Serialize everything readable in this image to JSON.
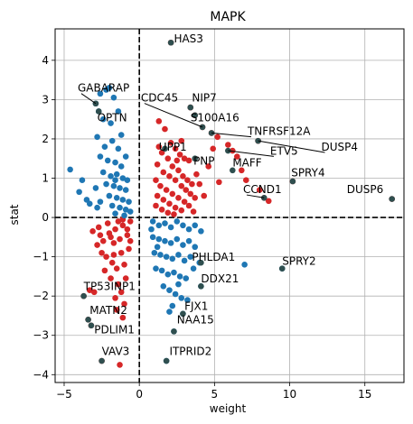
{
  "chart_data": {
    "type": "scatter",
    "title": "MAPK",
    "xlabel": "weight",
    "ylabel": "stat",
    "xlim": [
      -5.6,
      17.6
    ],
    "ylim": [
      -4.2,
      4.8
    ],
    "xticks": [
      -5,
      0,
      5,
      10,
      15
    ],
    "yticks": [
      -4,
      -3,
      -2,
      -1,
      0,
      1,
      2,
      3,
      4
    ],
    "grid": true,
    "reference_lines": {
      "x": 0,
      "y": 0,
      "style": "dashed"
    },
    "colors": {
      "positive": "#d62728",
      "negative": "#1f77b4",
      "annotated_point": "#2f4f4f"
    },
    "series": [
      {
        "color": "#d62728",
        "points": [
          [
            2.1,
            4.45
          ],
          [
            3.4,
            2.8
          ],
          [
            3.7,
            2.6
          ],
          [
            4.2,
            2.3
          ],
          [
            4.8,
            2.15
          ],
          [
            5.2,
            2.05
          ],
          [
            5.9,
            1.85
          ],
          [
            6.2,
            1.7
          ],
          [
            6.5,
            1.55
          ],
          [
            6.8,
            1.2
          ],
          [
            7.1,
            0.95
          ],
          [
            7.9,
            1.95
          ],
          [
            8.0,
            0.7
          ],
          [
            8.3,
            0.5
          ],
          [
            8.6,
            0.42
          ],
          [
            10.2,
            0.92
          ],
          [
            16.8,
            0.47
          ],
          [
            4.9,
            1.75
          ],
          [
            4.6,
            1.3
          ],
          [
            5.3,
            0.9
          ],
          [
            4.3,
            0.55
          ],
          [
            1.3,
            2.45
          ],
          [
            1.7,
            2.25
          ],
          [
            2.1,
            1.9
          ],
          [
            2.4,
            1.75
          ],
          [
            2.7,
            1.6
          ],
          [
            3.0,
            1.5
          ],
          [
            3.3,
            1.45
          ],
          [
            1.5,
            1.65
          ],
          [
            1.9,
            1.5
          ],
          [
            2.2,
            1.3
          ],
          [
            2.6,
            1.2
          ],
          [
            2.9,
            1.05
          ],
          [
            3.2,
            0.95
          ],
          [
            3.5,
            0.85
          ],
          [
            1.2,
            1.35
          ],
          [
            1.6,
            1.15
          ],
          [
            2.0,
            1.05
          ],
          [
            2.4,
            0.95
          ],
          [
            2.8,
            0.8
          ],
          [
            3.1,
            0.7
          ],
          [
            3.4,
            0.6
          ],
          [
            3.7,
            0.5
          ],
          [
            1.1,
            0.95
          ],
          [
            1.4,
            0.8
          ],
          [
            1.8,
            0.7
          ],
          [
            2.2,
            0.6
          ],
          [
            2.6,
            0.5
          ],
          [
            3.0,
            0.4
          ],
          [
            3.3,
            0.3
          ],
          [
            1.2,
            0.55
          ],
          [
            1.6,
            0.45
          ],
          [
            2.0,
            0.35
          ],
          [
            2.4,
            0.25
          ],
          [
            2.8,
            0.18
          ],
          [
            1.1,
            0.3
          ],
          [
            1.5,
            0.2
          ],
          [
            1.9,
            0.12
          ],
          [
            2.3,
            0.08
          ],
          [
            3.6,
            0.15
          ],
          [
            2.5,
            1.45
          ],
          [
            3.8,
            1.1
          ],
          [
            4.0,
            0.85
          ],
          [
            1.3,
            1.8
          ],
          [
            2.8,
            1.95
          ],
          [
            -0.6,
            -0.1
          ],
          [
            -1.1,
            -0.2
          ],
          [
            -1.6,
            -0.3
          ],
          [
            -2.1,
            -0.15
          ],
          [
            -2.7,
            -0.25
          ],
          [
            -0.8,
            -0.45
          ],
          [
            -1.3,
            -0.55
          ],
          [
            -1.9,
            -0.5
          ],
          [
            -2.4,
            -0.6
          ],
          [
            -3.1,
            -0.35
          ],
          [
            -0.7,
            -0.8
          ],
          [
            -1.2,
            -0.9
          ],
          [
            -1.7,
            -0.95
          ],
          [
            -2.2,
            -1.0
          ],
          [
            -2.8,
            -0.7
          ],
          [
            -1.0,
            -1.2
          ],
          [
            -1.5,
            -1.3
          ],
          [
            -0.9,
            -1.55
          ],
          [
            -1.4,
            -1.7
          ],
          [
            -1.2,
            -1.9
          ],
          [
            -1.6,
            -2.05
          ],
          [
            -1.0,
            -2.2
          ],
          [
            -1.5,
            -2.35
          ],
          [
            -1.1,
            -2.55
          ],
          [
            -0.8,
            -0.3
          ],
          [
            -1.4,
            -0.1
          ],
          [
            -2.0,
            -0.4
          ],
          [
            -2.5,
            -0.9
          ],
          [
            -1.8,
            -1.15
          ],
          [
            -3.3,
            -1.85
          ],
          [
            -3.0,
            -1.9
          ],
          [
            -3.7,
            -2.0
          ],
          [
            -3.4,
            -2.6
          ],
          [
            -3.2,
            -2.75
          ],
          [
            -2.5,
            -3.65
          ],
          [
            -1.3,
            -3.75
          ],
          [
            -1.1,
            -0.05
          ],
          [
            -1.7,
            -0.65
          ],
          [
            -2.3,
            -1.35
          ],
          [
            -1.9,
            -1.55
          ],
          [
            -2.6,
            -0.45
          ],
          [
            -0.6,
            -0.6
          ]
        ]
      },
      {
        "color": "#1f77b4",
        "points": [
          [
            -4.6,
            1.22
          ],
          [
            -2.9,
            2.9
          ],
          [
            -2.6,
            3.15
          ],
          [
            -2.2,
            3.25
          ],
          [
            -2.0,
            3.3
          ],
          [
            -1.7,
            3.05
          ],
          [
            -2.7,
            2.7
          ],
          [
            -2.4,
            2.5
          ],
          [
            -1.9,
            2.4
          ],
          [
            -2.8,
            2.05
          ],
          [
            -2.3,
            1.8
          ],
          [
            -1.8,
            1.95
          ],
          [
            -1.4,
            1.75
          ],
          [
            -2.6,
            1.55
          ],
          [
            -2.1,
            1.45
          ],
          [
            -1.6,
            1.4
          ],
          [
            -1.2,
            1.3
          ],
          [
            -2.4,
            1.15
          ],
          [
            -1.9,
            1.05
          ],
          [
            -1.5,
            1.1
          ],
          [
            -1.1,
            1.0
          ],
          [
            -2.2,
            0.85
          ],
          [
            -1.7,
            0.8
          ],
          [
            -1.3,
            0.75
          ],
          [
            -0.9,
            0.7
          ],
          [
            -2.0,
            0.55
          ],
          [
            -1.5,
            0.5
          ],
          [
            -1.1,
            0.45
          ],
          [
            -0.7,
            0.4
          ],
          [
            -1.8,
            0.3
          ],
          [
            -1.3,
            0.25
          ],
          [
            -0.9,
            0.2
          ],
          [
            -0.6,
            0.15
          ],
          [
            -1.6,
            0.1
          ],
          [
            -1.0,
            0.05
          ],
          [
            -4.0,
            0.65
          ],
          [
            -3.5,
            0.45
          ],
          [
            -3.3,
            0.35
          ],
          [
            -3.8,
            0.95
          ],
          [
            -2.9,
            0.75
          ],
          [
            -2.6,
            0.4
          ],
          [
            -1.2,
            2.1
          ],
          [
            -0.9,
            1.55
          ],
          [
            -1.4,
            2.7
          ],
          [
            -1.6,
            0.95
          ],
          [
            -2.8,
            0.25
          ],
          [
            -0.8,
            0.95
          ],
          [
            0.9,
            -0.1
          ],
          [
            1.3,
            -0.2
          ],
          [
            1.7,
            -0.15
          ],
          [
            2.1,
            -0.25
          ],
          [
            2.5,
            -0.1
          ],
          [
            2.9,
            -0.2
          ],
          [
            3.3,
            -0.3
          ],
          [
            3.7,
            -0.2
          ],
          [
            4.1,
            -0.35
          ],
          [
            0.9,
            -0.5
          ],
          [
            1.3,
            -0.55
          ],
          [
            1.7,
            -0.6
          ],
          [
            2.1,
            -0.65
          ],
          [
            2.5,
            -0.55
          ],
          [
            2.9,
            -0.7
          ],
          [
            3.3,
            -0.6
          ],
          [
            3.7,
            -0.75
          ],
          [
            1.0,
            -0.9
          ],
          [
            1.4,
            -0.95
          ],
          [
            1.8,
            -1.0
          ],
          [
            2.2,
            -1.05
          ],
          [
            2.6,
            -0.95
          ],
          [
            3.0,
            -1.1
          ],
          [
            3.4,
            -1.0
          ],
          [
            1.1,
            -1.3
          ],
          [
            1.5,
            -1.35
          ],
          [
            1.9,
            -1.45
          ],
          [
            2.3,
            -1.4
          ],
          [
            2.7,
            -1.5
          ],
          [
            3.1,
            -1.55
          ],
          [
            1.6,
            -1.75
          ],
          [
            2.0,
            -1.85
          ],
          [
            2.4,
            -1.95
          ],
          [
            2.8,
            -2.05
          ],
          [
            3.2,
            -2.1
          ],
          [
            2.2,
            -2.25
          ],
          [
            2.0,
            -2.4
          ],
          [
            3.6,
            -1.3
          ],
          [
            4.0,
            -1.15
          ],
          [
            7.0,
            -1.2
          ],
          [
            9.5,
            -1.3
          ],
          [
            4.1,
            -1.75
          ],
          [
            2.9,
            -2.45
          ],
          [
            2.3,
            -2.9
          ],
          [
            1.8,
            -3.65
          ],
          [
            1.2,
            -0.75
          ],
          [
            2.6,
            -1.7
          ],
          [
            0.8,
            -0.3
          ]
        ]
      }
    ],
    "annotations": [
      {
        "label": "HAS3",
        "x": 2.1,
        "y": 4.45,
        "tx": 2.3,
        "ty": 4.45,
        "leader": false
      },
      {
        "label": "NIP7",
        "x": 3.4,
        "y": 2.8,
        "tx": 3.5,
        "ty": 2.95,
        "leader": false
      },
      {
        "label": "CDC45",
        "x": 4.2,
        "y": 2.3,
        "tx": 0.1,
        "ty": 2.95,
        "leader": true
      },
      {
        "label": "S100A16",
        "x": 3.7,
        "y": 2.6,
        "tx": 3.4,
        "ty": 2.45,
        "leader": false
      },
      {
        "label": "TNFRSF12A",
        "x": 4.8,
        "y": 2.15,
        "tx": 7.2,
        "ty": 2.1,
        "leader": true
      },
      {
        "label": "DUSP4",
        "x": 7.9,
        "y": 1.95,
        "tx": 12.1,
        "ty": 1.7,
        "leader": true
      },
      {
        "label": "ETV5",
        "x": 5.9,
        "y": 1.7,
        "tx": 8.7,
        "ty": 1.6,
        "leader": true
      },
      {
        "label": "UPP1",
        "x": 1.7,
        "y": 1.75,
        "tx": 1.3,
        "ty": 1.7,
        "leader": false
      },
      {
        "label": "PNP",
        "x": 3.7,
        "y": 1.5,
        "tx": 3.6,
        "ty": 1.35,
        "leader": false
      },
      {
        "label": "MAFF",
        "x": 6.2,
        "y": 1.2,
        "tx": 6.2,
        "ty": 1.3,
        "leader": false
      },
      {
        "label": "SPRY4",
        "x": 10.2,
        "y": 0.92,
        "tx": 10.1,
        "ty": 1.05,
        "leader": false
      },
      {
        "label": "CCND1",
        "x": 8.3,
        "y": 0.5,
        "tx": 6.9,
        "ty": 0.62,
        "leader": true
      },
      {
        "label": "DUSP6",
        "x": 16.8,
        "y": 0.47,
        "tx": 13.8,
        "ty": 0.62,
        "leader": false
      },
      {
        "label": "GABARAP",
        "x": -2.9,
        "y": 2.9,
        "tx": -4.1,
        "ty": 3.2,
        "leader": true
      },
      {
        "label": "OPTN",
        "x": -2.7,
        "y": 2.7,
        "tx": -2.8,
        "ty": 2.45,
        "leader": false
      },
      {
        "label": "PHLDA1",
        "x": 4.1,
        "y": -1.15,
        "tx": 3.5,
        "ty": -1.1,
        "leader": false
      },
      {
        "label": "SPRY2",
        "x": 9.5,
        "y": -1.3,
        "tx": 9.5,
        "ty": -1.2,
        "leader": false
      },
      {
        "label": "DDX21",
        "x": 4.1,
        "y": -1.75,
        "tx": 4.1,
        "ty": -1.65,
        "leader": false
      },
      {
        "label": "TP53INP1",
        "x": -3.7,
        "y": -2.0,
        "tx": -3.7,
        "ty": -1.85,
        "leader": false
      },
      {
        "label": "FJX1",
        "x": 2.9,
        "y": -2.45,
        "tx": 3.0,
        "ty": -2.35,
        "leader": false
      },
      {
        "label": "MATN2",
        "x": -3.4,
        "y": -2.6,
        "tx": -3.3,
        "ty": -2.45,
        "leader": false
      },
      {
        "label": "NAA15",
        "x": 2.3,
        "y": -2.9,
        "tx": 2.5,
        "ty": -2.7,
        "leader": false
      },
      {
        "label": "PDLIM1",
        "x": -3.2,
        "y": -2.75,
        "tx": -3.0,
        "ty": -2.95,
        "leader": false
      },
      {
        "label": "VAV3",
        "x": -2.5,
        "y": -3.65,
        "tx": -2.5,
        "ty": -3.5,
        "leader": false
      },
      {
        "label": "ITPRID2",
        "x": 1.8,
        "y": -3.65,
        "tx": 2.0,
        "ty": -3.5,
        "leader": false
      }
    ]
  }
}
